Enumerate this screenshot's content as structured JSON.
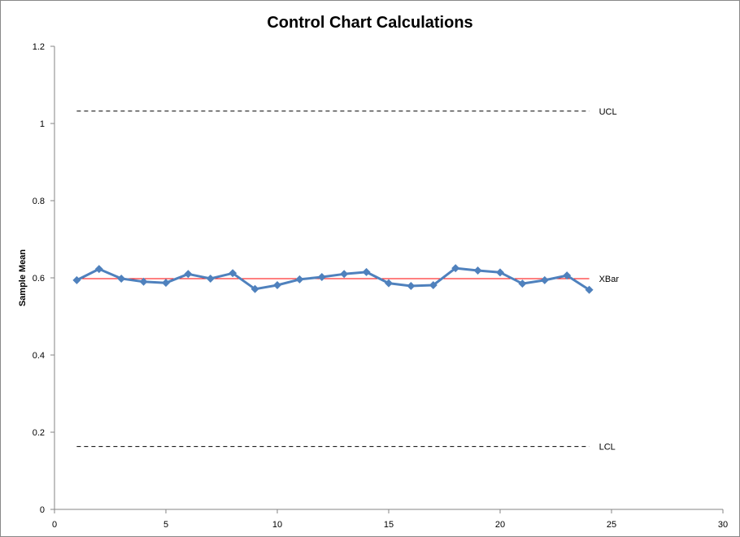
{
  "chart_data": {
    "type": "line",
    "title": "Control Chart Calculations",
    "xlabel": "",
    "ylabel": "Sample Mean",
    "xlim": [
      0,
      30
    ],
    "ylim": [
      0,
      1.2
    ],
    "x_ticks": [
      "0",
      "5",
      "10",
      "15",
      "20",
      "25",
      "30"
    ],
    "y_ticks": [
      "0",
      "0.2",
      "0.4",
      "0.6",
      "0.8",
      "1",
      "1.2"
    ],
    "grid": false,
    "x": [
      1,
      2,
      3,
      4,
      5,
      6,
      7,
      8,
      9,
      10,
      11,
      12,
      13,
      14,
      15,
      16,
      17,
      18,
      19,
      20,
      21,
      22,
      23,
      24
    ],
    "series": [
      {
        "values": [
          0.594,
          0.623,
          0.598,
          0.59,
          0.587,
          0.61,
          0.598,
          0.612,
          0.571,
          0.581,
          0.596,
          0.602,
          0.61,
          0.615,
          0.586,
          0.579,
          0.581,
          0.625,
          0.619,
          0.614,
          0.585,
          0.594,
          0.606,
          0.569
        ],
        "color": "#4F81BD",
        "marker": "diamond"
      }
    ],
    "reference_lines": [
      {
        "label": "UCL",
        "value": 1.032,
        "x_range": [
          1,
          24
        ],
        "style": "dashed",
        "color": "#000000"
      },
      {
        "label": "XBar",
        "value": 0.598,
        "x_range": [
          1,
          24
        ],
        "style": "solid",
        "color": "#FF0000"
      },
      {
        "label": "LCL",
        "value": 0.163,
        "x_range": [
          1,
          24
        ],
        "style": "dashed",
        "color": "#000000"
      }
    ]
  }
}
